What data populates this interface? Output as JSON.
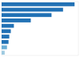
{
  "chart_data": {
    "type": "bar",
    "orientation": "horizontal",
    "categories": [
      null,
      null,
      null,
      null,
      null,
      null,
      null,
      null,
      null,
      null
    ],
    "values": [
      95,
      80,
      65,
      38,
      16,
      12,
      10,
      9,
      7,
      4
    ],
    "colors": [
      "#2171b5",
      "#2171b5",
      "#2171b5",
      "#2171b5",
      "#2171b5",
      "#2171b5",
      "#2171b5",
      "#2171b5",
      "#6baed6",
      "#9ecae1"
    ],
    "xlim": [
      0,
      100
    ],
    "tick_labels": false,
    "grid": false
  }
}
